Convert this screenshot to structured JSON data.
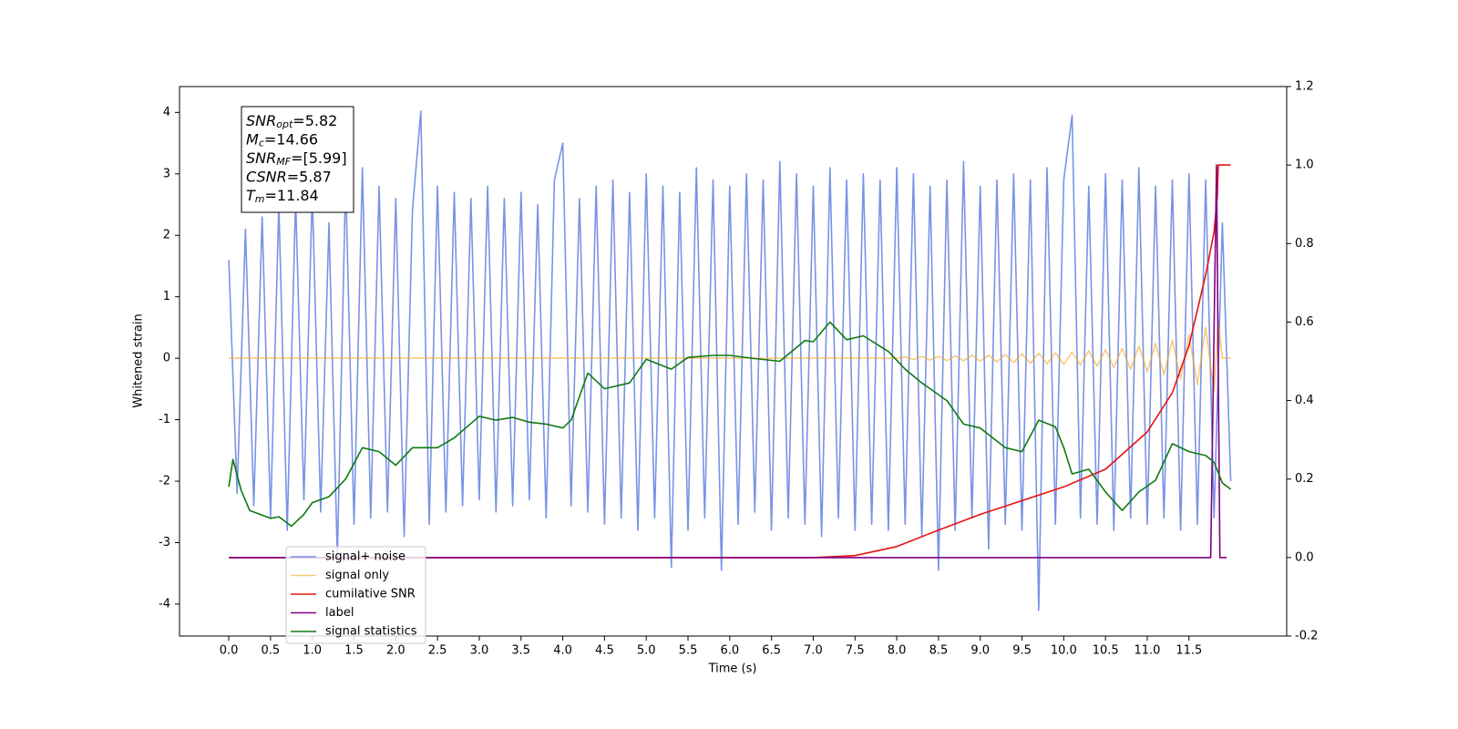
{
  "chart_data": {
    "type": "line",
    "xlabel": "Time (s)",
    "ylabel": "Whitened strain",
    "xlim": [
      -0.59,
      12.67
    ],
    "ylim": [
      -4.52,
      4.42
    ],
    "y2lim": [
      -0.2,
      1.2
    ],
    "xticks": [
      {
        "value": 0,
        "label": "0.0"
      },
      0.5,
      {
        "value": 1,
        "label": "1.0"
      },
      1.5,
      {
        "value": 2,
        "label": "2.0"
      },
      2.5,
      {
        "value": 3,
        "label": "3.0"
      },
      3.5,
      {
        "value": 4,
        "label": "4.0"
      },
      4.5,
      {
        "value": 5,
        "label": "5.0"
      },
      5.5,
      {
        "value": 6,
        "label": "6.0"
      },
      6.5,
      {
        "value": 7,
        "label": "7.0"
      },
      7.5,
      {
        "value": 8,
        "label": "8.0"
      },
      8.5,
      {
        "value": 9,
        "label": "9.0"
      },
      9.5,
      {
        "value": 10,
        "label": "10.0"
      },
      10.5,
      {
        "value": 11,
        "label": "11.0"
      },
      11.5
    ],
    "yticks": [
      -4,
      -3,
      -2,
      -1,
      0,
      1,
      2,
      3,
      4
    ],
    "y2ticks": [
      -0.2,
      {
        "value": 0,
        "label": "0.0"
      },
      0.2,
      0.4,
      0.6,
      0.8,
      {
        "value": 1,
        "label": "1.0"
      },
      1.2
    ],
    "legend": "lower left",
    "annotation": [
      {
        "symbol": "SNR",
        "subscript": "opt",
        "text": "=5.82"
      },
      {
        "symbol": "M",
        "subscript": "c",
        "text": "=14.66"
      },
      {
        "symbol": "SNR",
        "subscript": "MF",
        "text": "=[5.99]"
      },
      {
        "symbol": "CSNR",
        "subscript": null,
        "text": "=5.87"
      },
      {
        "symbol": "T",
        "subscript": "m",
        "text": "=11.84"
      }
    ],
    "series": [
      {
        "name": "signal+ noise",
        "color": "#7893e6",
        "axis": "y",
        "x": [
          0,
          0.1,
          0.2,
          0.3,
          0.4,
          0.5,
          0.6,
          0.7,
          0.8,
          0.9,
          1,
          1.1,
          1.2,
          1.3,
          1.4,
          1.5,
          1.6,
          1.7,
          1.8,
          1.9,
          2,
          2.1,
          2.2,
          2.3,
          2.4,
          2.5,
          2.6,
          2.7,
          2.8,
          2.9,
          3,
          3.1,
          3.2,
          3.3,
          3.4,
          3.5,
          3.6,
          3.7,
          3.8,
          3.9,
          4,
          4.1,
          4.2,
          4.3,
          4.4,
          4.5,
          4.6,
          4.7,
          4.8,
          4.9,
          5,
          5.1,
          5.2,
          5.3,
          5.4,
          5.5,
          5.6,
          5.7,
          5.8,
          5.9,
          6,
          6.1,
          6.2,
          6.3,
          6.4,
          6.5,
          6.6,
          6.7,
          6.8,
          6.9,
          7,
          7.1,
          7.2,
          7.3,
          7.4,
          7.5,
          7.6,
          7.7,
          7.8,
          7.9,
          8,
          8.1,
          8.2,
          8.3,
          8.4,
          8.5,
          8.6,
          8.7,
          8.8,
          8.9,
          9,
          9.1,
          9.2,
          9.3,
          9.4,
          9.5,
          9.6,
          9.7,
          9.8,
          9.9,
          10,
          10.1,
          10.2,
          10.3,
          10.4,
          10.5,
          10.6,
          10.7,
          10.8,
          10.9,
          11,
          11.1,
          11.2,
          11.3,
          11.4,
          11.5,
          11.6,
          11.7,
          11.8,
          11.9,
          12
        ],
        "values": [
          1.6,
          -2.2,
          2.1,
          -2.4,
          2.3,
          -2.6,
          2.5,
          -2.8,
          2.6,
          -2.3,
          2.7,
          -2.5,
          2.2,
          -3.25,
          2.9,
          -2.7,
          3.1,
          -2.6,
          2.8,
          -2.5,
          2.6,
          -2.9,
          2.4,
          4.02,
          -2.7,
          2.8,
          -2.5,
          2.7,
          -2.4,
          2.6,
          -2.3,
          2.8,
          -2.5,
          2.6,
          -2.4,
          2.7,
          -2.3,
          2.5,
          -2.6,
          2.9,
          3.5,
          -2.4,
          2.6,
          -2.5,
          2.8,
          -2.7,
          2.9,
          -2.6,
          2.7,
          -2.8,
          3.0,
          -2.6,
          2.8,
          -3.4,
          2.7,
          -2.8,
          3.1,
          -2.6,
          2.9,
          -3.45,
          2.8,
          -2.7,
          3.0,
          -2.5,
          2.9,
          -2.8,
          3.2,
          -2.6,
          3.0,
          -2.7,
          2.8,
          -2.9,
          3.1,
          -2.6,
          2.9,
          -2.8,
          3.0,
          -2.7,
          2.9,
          -2.8,
          3.1,
          -2.7,
          3.0,
          -2.9,
          2.8,
          -3.45,
          2.9,
          -2.8,
          3.2,
          -2.6,
          2.8,
          -3.1,
          2.9,
          -2.7,
          3.0,
          -2.8,
          2.9,
          -4.1,
          3.1,
          -2.7,
          2.9,
          3.95,
          -2.6,
          2.8,
          -2.7,
          3.0,
          -2.8,
          2.9,
          -2.6,
          3.1,
          -2.7,
          2.8,
          -2.6,
          2.9,
          -2.8,
          3.0,
          -2.7,
          2.9,
          -2.6,
          2.2,
          -2.0
        ]
      },
      {
        "name": "signal only",
        "color": "#f5a623",
        "axis": "y",
        "x": [
          0,
          1,
          2,
          3,
          4,
          5,
          6,
          7,
          8,
          8.1,
          8.2,
          8.3,
          8.4,
          8.5,
          8.6,
          8.7,
          8.8,
          8.9,
          9,
          9.1,
          9.2,
          9.3,
          9.4,
          9.5,
          9.6,
          9.7,
          9.8,
          9.9,
          10,
          10.1,
          10.2,
          10.3,
          10.4,
          10.5,
          10.6,
          10.7,
          10.8,
          10.9,
          11,
          11.1,
          11.2,
          11.3,
          11.4,
          11.5,
          11.6,
          11.7,
          11.8,
          11.85,
          11.9,
          12
        ],
        "values": [
          0,
          0,
          0,
          0,
          0,
          0,
          0,
          0,
          0,
          0.02,
          -0.02,
          0.03,
          -0.03,
          0.03,
          -0.04,
          0.04,
          -0.04,
          0.05,
          -0.05,
          0.05,
          -0.06,
          0.06,
          -0.07,
          0.07,
          -0.08,
          0.08,
          -0.09,
          0.09,
          -0.1,
          0.1,
          -0.11,
          0.12,
          -0.13,
          0.14,
          -0.15,
          0.16,
          -0.18,
          0.2,
          -0.22,
          0.24,
          -0.27,
          0.3,
          -0.34,
          0.38,
          -0.43,
          0.5,
          -0.55,
          0.6,
          0,
          0
        ]
      },
      {
        "name": "cumilative SNR",
        "color": "#e81010",
        "axis": "y2",
        "x": [
          0,
          7.0,
          7.5,
          8.0,
          8.5,
          9.0,
          9.5,
          10.0,
          10.5,
          11.0,
          11.3,
          11.5,
          11.7,
          11.8,
          11.84,
          11.85,
          12.0
        ],
        "values": [
          0,
          0,
          0.005,
          0.028,
          0.07,
          0.11,
          0.145,
          0.18,
          0.225,
          0.32,
          0.42,
          0.54,
          0.72,
          0.83,
          0.92,
          1.0,
          1.0
        ]
      },
      {
        "name": "label",
        "color": "#800080",
        "axis": "y2",
        "x": [
          0,
          11.76,
          11.83,
          11.87,
          11.95
        ],
        "values": [
          0,
          0,
          1.0,
          0,
          0
        ]
      },
      {
        "name": "signal statistics",
        "color": "#107a10",
        "axis": "y2",
        "x": [
          0,
          0.05,
          0.15,
          0.25,
          0.5,
          0.6,
          0.75,
          0.9,
          1.0,
          1.2,
          1.4,
          1.6,
          1.8,
          2.0,
          2.2,
          2.5,
          2.7,
          3.0,
          3.2,
          3.4,
          3.6,
          3.8,
          4.0,
          4.1,
          4.3,
          4.5,
          4.8,
          5.0,
          5.3,
          5.5,
          5.8,
          6.0,
          6.3,
          6.6,
          6.9,
          7.0,
          7.2,
          7.4,
          7.6,
          7.9,
          8.1,
          8.3,
          8.6,
          8.8,
          9.0,
          9.3,
          9.5,
          9.7,
          9.9,
          10.0,
          10.1,
          10.3,
          10.5,
          10.7,
          10.9,
          11.1,
          11.3,
          11.5,
          11.7,
          11.8,
          11.9,
          12.0
        ],
        "values": [
          0.18,
          0.25,
          0.17,
          0.12,
          0.1,
          0.104,
          0.08,
          0.11,
          0.14,
          0.155,
          0.2,
          0.28,
          0.27,
          0.235,
          0.28,
          0.28,
          0.305,
          0.36,
          0.35,
          0.357,
          0.345,
          0.34,
          0.33,
          0.35,
          0.47,
          0.43,
          0.445,
          0.505,
          0.48,
          0.51,
          0.515,
          0.515,
          0.507,
          0.5,
          0.553,
          0.55,
          0.6,
          0.555,
          0.565,
          0.525,
          0.48,
          0.445,
          0.4,
          0.34,
          0.33,
          0.28,
          0.27,
          0.35,
          0.333,
          0.28,
          0.213,
          0.225,
          0.167,
          0.12,
          0.167,
          0.197,
          0.29,
          0.27,
          0.26,
          0.243,
          0.19,
          0.174
        ]
      }
    ]
  }
}
